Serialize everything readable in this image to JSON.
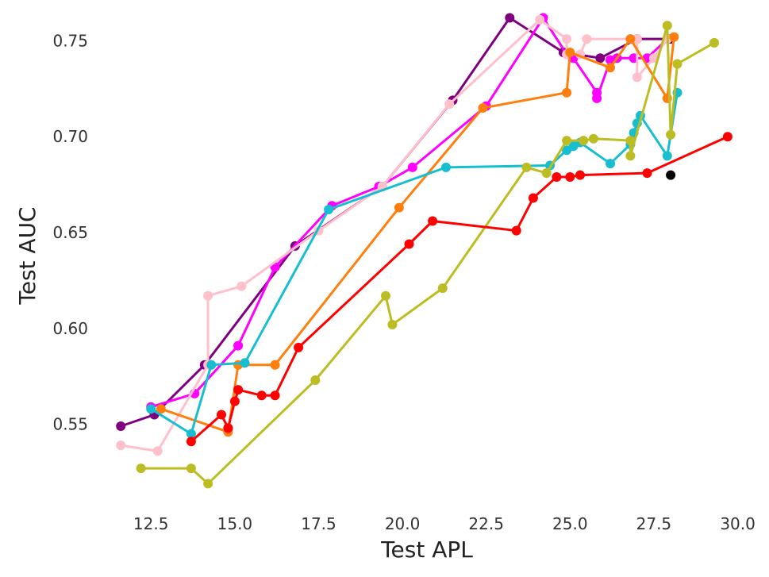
{
  "chart_data": {
    "type": "line",
    "title": "",
    "xlabel": "Test APL",
    "ylabel": "Test AUC",
    "xlim": [
      11.5,
      30.2
    ],
    "ylim": [
      0.508,
      0.768
    ],
    "grid": false,
    "legend": "none",
    "xticks": [
      "12.5",
      "15.0",
      "17.5",
      "20.0",
      "22.5",
      "25.0",
      "27.5",
      "30.0"
    ],
    "yticks": [
      "0.55",
      "0.60",
      "0.65",
      "0.70",
      "0.75"
    ],
    "series": [
      {
        "color": "#7f007f",
        "points": [
          [
            11.6,
            0.549
          ],
          [
            12.6,
            0.555
          ],
          [
            14.1,
            0.581
          ],
          [
            16.8,
            0.643
          ],
          [
            19.4,
            0.674
          ],
          [
            21.5,
            0.719
          ],
          [
            23.2,
            0.762
          ],
          [
            24.8,
            0.744
          ],
          [
            25.9,
            0.741
          ],
          [
            27.0,
            0.751
          ],
          [
            28.0,
            0.751
          ]
        ]
      },
      {
        "color": "#ff00ff",
        "points": [
          [
            12.5,
            0.559
          ],
          [
            13.8,
            0.566
          ],
          [
            15.1,
            0.591
          ],
          [
            16.2,
            0.632
          ],
          [
            17.9,
            0.664
          ],
          [
            19.3,
            0.674
          ],
          [
            20.3,
            0.684
          ],
          [
            22.5,
            0.716
          ],
          [
            24.2,
            0.762
          ],
          [
            24.9,
            0.743
          ],
          [
            25.1,
            0.741
          ],
          [
            25.8,
            0.723
          ],
          [
            25.8,
            0.72
          ],
          [
            26.2,
            0.74
          ],
          [
            26.4,
            0.741
          ],
          [
            26.9,
            0.741
          ],
          [
            27.3,
            0.741
          ],
          [
            27.9,
            0.751
          ]
        ]
      },
      {
        "color": "#ffc0cb",
        "points": [
          [
            11.6,
            0.539
          ],
          [
            12.7,
            0.536
          ],
          [
            14.2,
            0.581
          ],
          [
            14.2,
            0.617
          ],
          [
            15.2,
            0.622
          ],
          [
            17.5,
            0.651
          ],
          [
            19.4,
            0.674
          ],
          [
            21.4,
            0.717
          ],
          [
            24.1,
            0.761
          ],
          [
            24.9,
            0.751
          ],
          [
            24.9,
            0.743
          ],
          [
            25.3,
            0.743
          ],
          [
            25.5,
            0.751
          ],
          [
            27.0,
            0.751
          ],
          [
            27.0,
            0.731
          ],
          [
            27.5,
            0.741
          ],
          [
            27.9,
            0.751
          ]
        ]
      },
      {
        "color": "#ff7f0e",
        "points": [
          [
            12.8,
            0.558
          ],
          [
            14.8,
            0.546
          ],
          [
            15.1,
            0.581
          ],
          [
            16.2,
            0.581
          ],
          [
            19.9,
            0.663
          ],
          [
            22.4,
            0.715
          ],
          [
            24.9,
            0.723
          ],
          [
            25.0,
            0.744
          ],
          [
            26.2,
            0.736
          ],
          [
            26.8,
            0.751
          ],
          [
            27.9,
            0.72
          ],
          [
            28.1,
            0.752
          ]
        ]
      },
      {
        "color": "#17becf",
        "points": [
          [
            12.5,
            0.558
          ],
          [
            13.7,
            0.545
          ],
          [
            14.3,
            0.581
          ],
          [
            15.3,
            0.582
          ],
          [
            17.8,
            0.662
          ],
          [
            21.3,
            0.684
          ],
          [
            24.4,
            0.685
          ],
          [
            24.9,
            0.693
          ],
          [
            25.1,
            0.695
          ],
          [
            25.3,
            0.697
          ],
          [
            26.2,
            0.686
          ],
          [
            26.8,
            0.696
          ],
          [
            26.9,
            0.702
          ],
          [
            27.0,
            0.707
          ],
          [
            27.1,
            0.711
          ],
          [
            27.9,
            0.69
          ],
          [
            28.2,
            0.723
          ]
        ]
      },
      {
        "color": "#bcbd22",
        "points": [
          [
            12.2,
            0.527
          ],
          [
            13.7,
            0.527
          ],
          [
            14.2,
            0.519
          ],
          [
            17.4,
            0.573
          ],
          [
            19.5,
            0.617
          ],
          [
            19.7,
            0.602
          ],
          [
            21.2,
            0.621
          ],
          [
            23.7,
            0.684
          ],
          [
            24.3,
            0.681
          ],
          [
            24.9,
            0.698
          ],
          [
            25.4,
            0.698
          ],
          [
            25.7,
            0.699
          ],
          [
            26.8,
            0.698
          ],
          [
            26.8,
            0.69
          ],
          [
            27.9,
            0.758
          ],
          [
            28.0,
            0.701
          ],
          [
            28.2,
            0.738
          ],
          [
            29.3,
            0.749
          ]
        ]
      },
      {
        "color": "#ff0000",
        "points": [
          [
            13.7,
            0.541
          ],
          [
            14.6,
            0.555
          ],
          [
            14.8,
            0.548
          ],
          [
            14.8,
            0.548
          ],
          [
            15.0,
            0.562
          ],
          [
            15.1,
            0.568
          ],
          [
            15.8,
            0.565
          ],
          [
            16.2,
            0.565
          ],
          [
            16.9,
            0.59
          ],
          [
            20.2,
            0.644
          ],
          [
            20.9,
            0.656
          ],
          [
            23.4,
            0.651
          ],
          [
            23.9,
            0.668
          ],
          [
            24.6,
            0.679
          ],
          [
            25.0,
            0.679
          ],
          [
            25.3,
            0.68
          ],
          [
            27.3,
            0.681
          ],
          [
            29.7,
            0.7
          ]
        ]
      },
      {
        "color": "#000000",
        "points": [
          [
            28.0,
            0.68
          ]
        ]
      }
    ]
  }
}
